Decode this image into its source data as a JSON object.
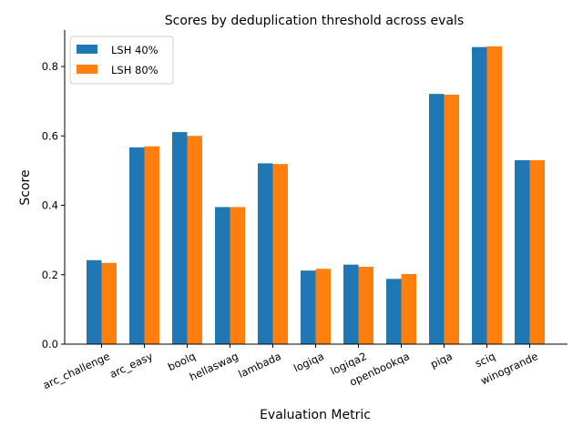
{
  "chart_data": {
    "type": "bar",
    "title": "Scores by deduplication threshold across evals",
    "xlabel": "Evaluation Metric",
    "ylabel": "Score",
    "categories": [
      "arc_challenge",
      "arc_easy",
      "boolq",
      "hellaswag",
      "lambada",
      "logiqa",
      "logiqa2",
      "openbookqa",
      "piqa",
      "sciq",
      "winogrande"
    ],
    "series": [
      {
        "name": "LSH 40%",
        "color": "#1f77b4",
        "values": [
          0.242,
          0.567,
          0.611,
          0.395,
          0.521,
          0.212,
          0.229,
          0.188,
          0.721,
          0.856,
          0.53
        ]
      },
      {
        "name": "LSH 80%",
        "color": "#ff7f0e",
        "values": [
          0.234,
          0.57,
          0.6,
          0.395,
          0.519,
          0.217,
          0.223,
          0.202,
          0.719,
          0.858,
          0.53
        ]
      }
    ],
    "ylim": [
      0,
      0.905
    ],
    "yticks": [
      0.0,
      0.2,
      0.4,
      0.6,
      0.8
    ],
    "ytick_labels": [
      "0.0",
      "0.2",
      "0.4",
      "0.6",
      "0.8"
    ],
    "grid": false,
    "legend_position": "top-left",
    "xtick_rotation": "25-degrees"
  }
}
